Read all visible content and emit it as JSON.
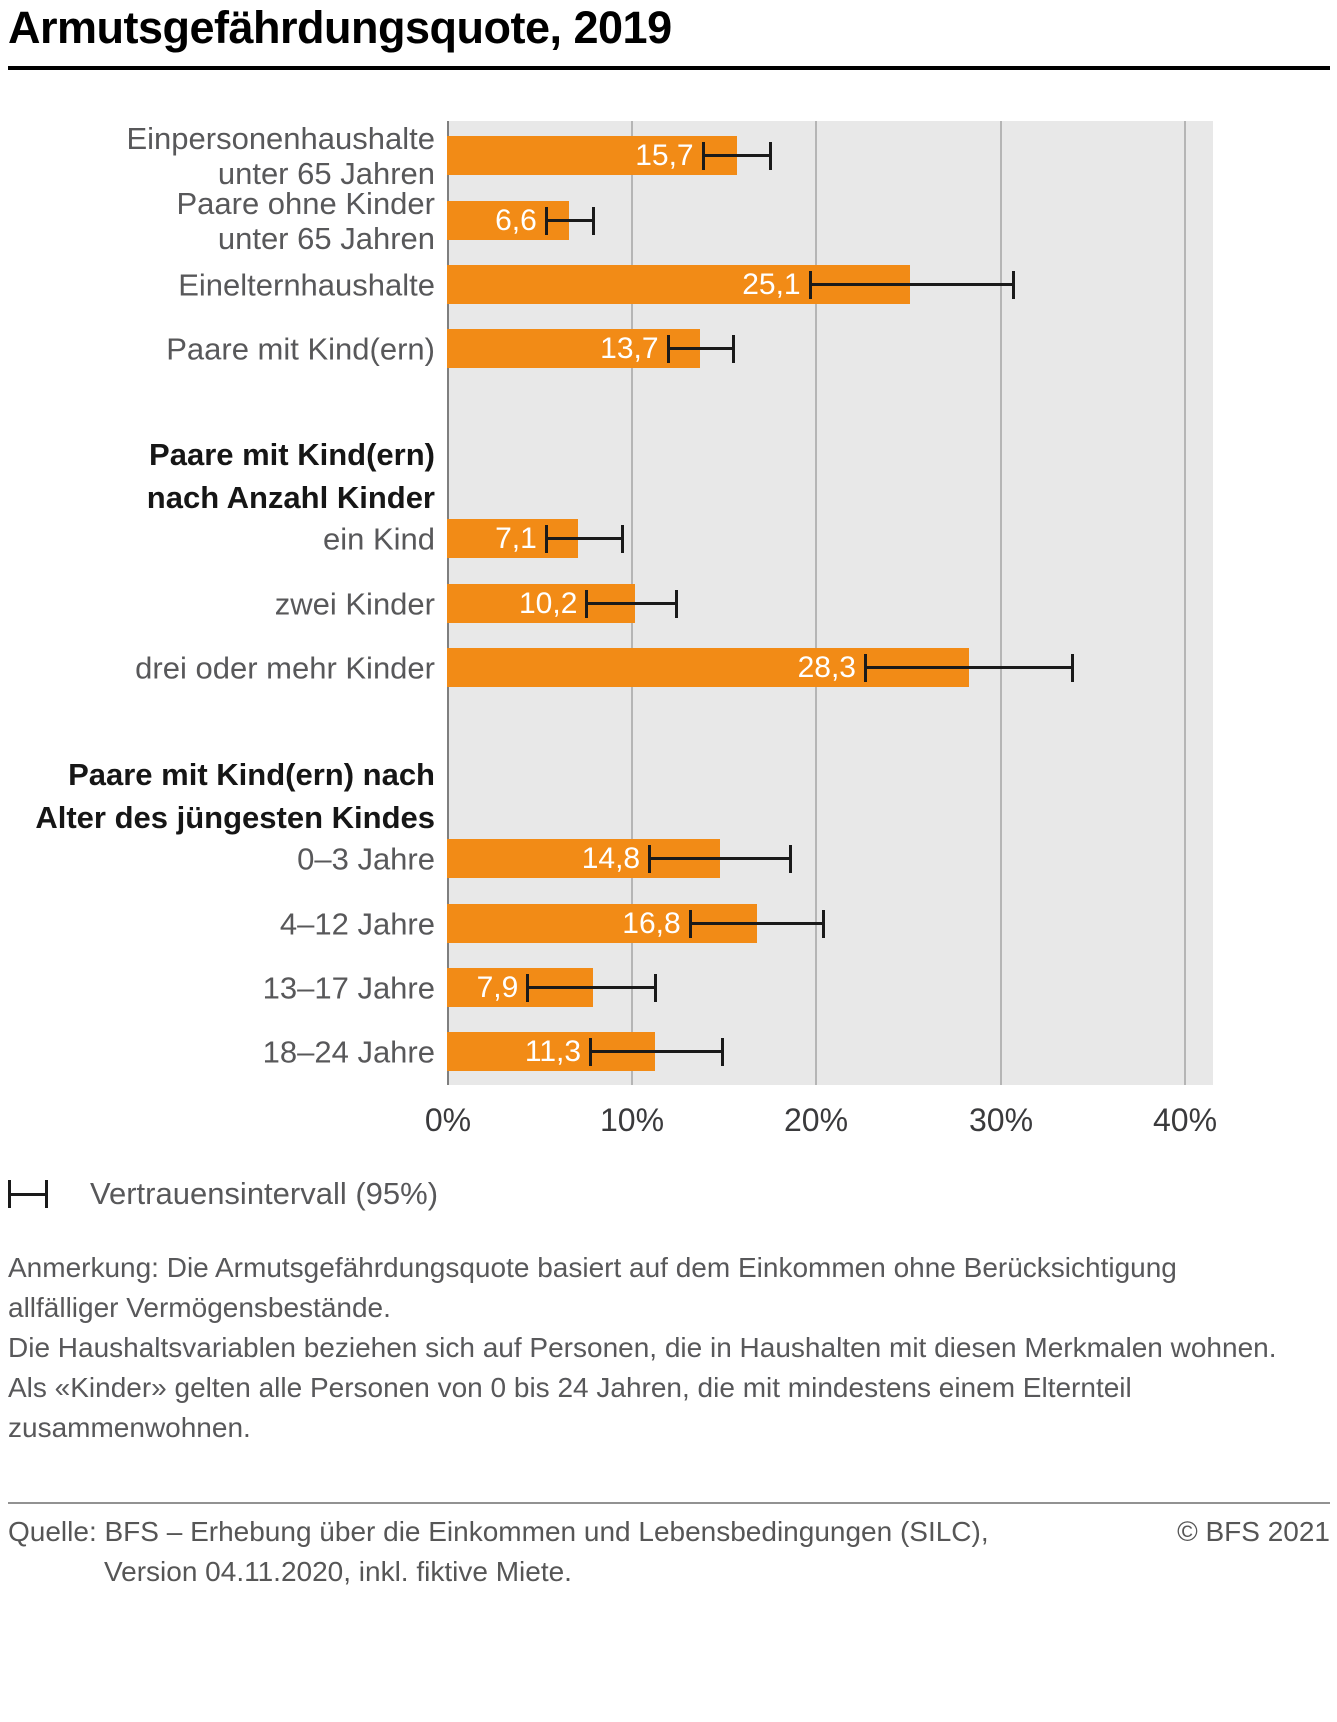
{
  "chart_data": {
    "type": "bar",
    "orientation": "horizontal",
    "title": "Armutsgefährdungsquote, 2019",
    "xlabel": "",
    "ylabel": "",
    "unit": "%",
    "xlim": [
      0,
      40
    ],
    "x_ticks": [
      "0%",
      "10%",
      "20%",
      "30%",
      "40%"
    ],
    "x_tick_values": [
      0,
      10,
      20,
      30,
      40
    ],
    "grid": "vertical",
    "bar_color": "#f28b16",
    "plot_background": "#e8e8e8",
    "error_bar_color": "#1a1a1a",
    "legend_position": "below",
    "legend": {
      "label": "Vertrauensintervall (95%)"
    },
    "rows": [
      {
        "type": "bar",
        "label_lines": [
          "Einpersonenhaushalte",
          "unter 65 Jahren"
        ],
        "value": 15.7,
        "value_label": "15,7",
        "ci": [
          13.8,
          17.6
        ]
      },
      {
        "type": "bar",
        "label_lines": [
          "Paare ohne Kinder",
          "unter 65 Jahren"
        ],
        "value": 6.6,
        "value_label": "6,6",
        "ci": [
          5.3,
          8.0
        ]
      },
      {
        "type": "bar",
        "label_lines": [
          "Einelternhaushalte"
        ],
        "value": 25.1,
        "value_label": "25,1",
        "ci": [
          19.6,
          30.8
        ]
      },
      {
        "type": "bar",
        "label_lines": [
          "Paare mit Kind(ern)"
        ],
        "value": 13.7,
        "value_label": "13,7",
        "ci": [
          11.9,
          15.6
        ]
      },
      {
        "type": "group-header",
        "label_lines": [
          "Paare mit Kind(ern)",
          "nach Anzahl Kinder"
        ]
      },
      {
        "type": "bar",
        "label_lines": [
          "ein Kind"
        ],
        "value": 7.1,
        "value_label": "7,1",
        "ci": [
          5.3,
          9.6
        ]
      },
      {
        "type": "bar",
        "label_lines": [
          "zwei Kinder"
        ],
        "value": 10.2,
        "value_label": "10,2",
        "ci": [
          7.5,
          12.5
        ]
      },
      {
        "type": "bar",
        "label_lines": [
          "drei oder mehr Kinder"
        ],
        "value": 28.3,
        "value_label": "28,3",
        "ci": [
          22.6,
          34.0
        ]
      },
      {
        "type": "group-header",
        "label_lines": [
          "Paare mit Kind(ern) nach",
          "Alter des jüngesten Kindes"
        ]
      },
      {
        "type": "bar",
        "label_lines": [
          "0–3 Jahre"
        ],
        "value": 14.8,
        "value_label": "14,8",
        "ci": [
          10.9,
          18.7
        ]
      },
      {
        "type": "bar",
        "label_lines": [
          "4–12 Jahre"
        ],
        "value": 16.8,
        "value_label": "16,8",
        "ci": [
          13.1,
          20.5
        ]
      },
      {
        "type": "bar",
        "label_lines": [
          "13–17 Jahre"
        ],
        "value": 7.9,
        "value_label": "7,9",
        "ci": [
          4.3,
          11.4
        ]
      },
      {
        "type": "bar",
        "label_lines": [
          "18–24 Jahre"
        ],
        "value": 11.3,
        "value_label": "11,3",
        "ci": [
          7.7,
          15.0
        ]
      }
    ]
  },
  "notes": {
    "lines": [
      "Anmerkung: Die Armutsgefährdungsquote basiert auf dem Einkommen ohne Berücksichtigung",
      "allfälliger Vermögensbestände.",
      "Die Haushaltsvariablen beziehen sich auf Personen, die in Haushalten mit diesen Merkmalen wohnen.",
      "Als «Kinder» gelten alle Personen von 0 bis 24 Jahren, die mit mindestens einem Elternteil",
      "zusammenwohnen."
    ]
  },
  "footer": {
    "source_line1": "Quelle: BFS – Erhebung über die Einkommen und Lebensbedingungen (SILC),",
    "source_line2": "Version 04.11.2020, inkl. fiktive Miete.",
    "copyright": "© BFS 2021"
  }
}
